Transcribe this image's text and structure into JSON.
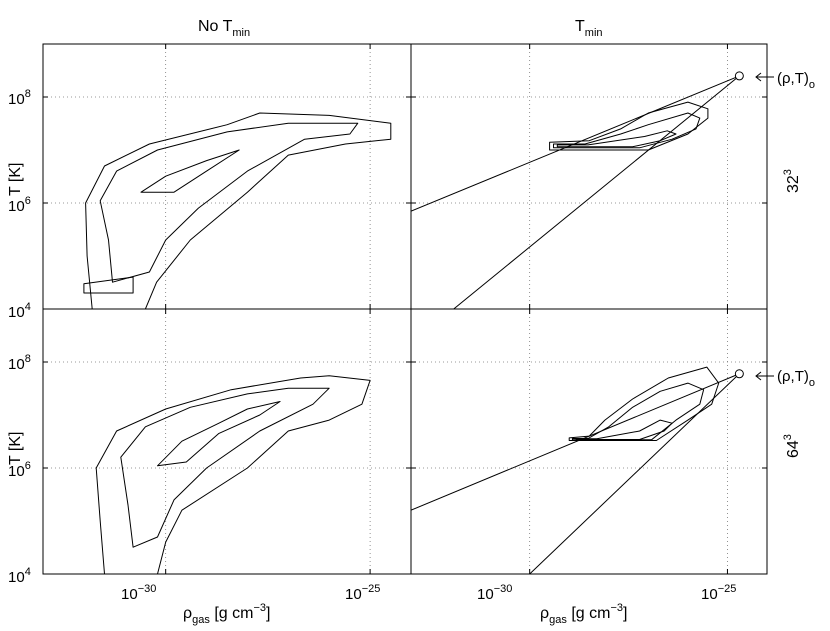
{
  "colors": {
    "line": "#000000",
    "grid": "#777777",
    "background": "#ffffff"
  },
  "columns": {
    "left": {
      "base": "No T",
      "sub": "min"
    },
    "right": {
      "base": "T",
      "sub": "min"
    }
  },
  "rows": {
    "top": {
      "base": "32",
      "sup": "3"
    },
    "bottom": {
      "base": "64",
      "sup": "3"
    }
  },
  "annotation": {
    "text": "(ρ,T)",
    "sub": "o"
  },
  "xaxis": {
    "base": "ρ",
    "sub": "gas",
    "unit_pre": "[g cm",
    "unit_sup": "−3",
    "unit_post": "]",
    "ticks": [
      {
        "base": "10",
        "exp": "−30"
      },
      {
        "base": "10",
        "exp": "−25"
      }
    ]
  },
  "yaxis": {
    "label": "T [K]",
    "ticks": [
      {
        "base": "10",
        "exp": "4"
      },
      {
        "base": "10",
        "exp": "6"
      },
      {
        "base": "10",
        "exp": "8"
      }
    ]
  },
  "chart_data": [
    {
      "type": "contour",
      "panel": "No T_min, 32^3",
      "xscale": "log",
      "yscale": "log",
      "xlim": [
        1e-33,
        1e-24
      ],
      "ylim": [
        10000.0,
        1000000000.0
      ],
      "xticks": [
        1e-30,
        1e-25
      ],
      "yticks": [
        10000.0,
        1000000.0,
        100000000.0
      ],
      "grid": true,
      "contours": [
        {
          "level": "outer",
          "points": [
            [
              1.6e-32,
              10000.0
            ],
            [
              1.2e-32,
              100000.0
            ],
            [
              1.1e-32,
              1000000.0
            ],
            [
              3.2e-32,
              5000000.0
            ],
            [
              4e-31,
              13000000.0
            ],
            [
              3.2e-29,
              30000000.0
            ],
            [
              2e-28,
              50000000.0
            ],
            [
              1e-26,
              45000000.0
            ],
            [
              3.2e-25,
              32000000.0
            ],
            [
              3.2e-25,
              16000000.0
            ],
            [
              2.5e-26,
              13000000.0
            ],
            [
              1e-27,
              8000000.0
            ],
            [
              1e-28,
              1600000.0
            ],
            [
              4e-30,
              200000.0
            ],
            [
              6e-31,
              32000.0
            ],
            [
              3.2e-31,
              10000.0
            ]
          ]
        },
        {
          "level": "middle",
          "points": [
            [
              5e-32,
              32000.0
            ],
            [
              4e-32,
              200000.0
            ],
            [
              2.5e-32,
              1100000.0
            ],
            [
              6.3e-32,
              4000000.0
            ],
            [
              6.3e-31,
              10000000.0
            ],
            [
              3.2e-29,
              22000000.0
            ],
            [
              1e-27,
              32000000.0
            ],
            [
              5e-26,
              32000000.0
            ],
            [
              3.2e-26,
              20000000.0
            ],
            [
              2.5e-27,
              16000000.0
            ],
            [
              1e-28,
              4000000.0
            ],
            [
              6.3e-30,
              800000.0
            ],
            [
              1e-30,
              200000.0
            ],
            [
              4e-31,
              50000.0
            ]
          ]
        },
        {
          "level": "inner",
          "points": [
            [
              2.5e-31,
              1600000.0
            ],
            [
              1e-30,
              3200000.0
            ],
            [
              1e-29,
              6300000.0
            ],
            [
              6.3e-29,
              10000000.0
            ],
            [
              1e-29,
              4000000.0
            ],
            [
              1.6e-30,
              1600000.0
            ]
          ]
        },
        {
          "level": "inner",
          "points": [
            [
              1e-32,
              30000.0
            ],
            [
              1.6e-31,
              40000.0
            ],
            [
              1.6e-31,
              20000.0
            ],
            [
              1e-32,
              20000.0
            ]
          ]
        }
      ]
    },
    {
      "type": "contour",
      "panel": "T_min, 32^3",
      "xscale": "log",
      "yscale": "log",
      "xlim": [
        1e-33,
        1e-24
      ],
      "ylim": [
        10000.0,
        1000000000.0
      ],
      "xticks": [
        1e-30,
        1e-25
      ],
      "yticks": [
        10000.0,
        1000000.0,
        100000000.0
      ],
      "grid": true,
      "contours": [
        {
          "level": "outer",
          "points": [
            [
              3.2e-30,
              14000000.0
            ],
            [
              3.2e-30,
              10000000.0
            ],
            [
              1e-27,
              10000000.0
            ],
            [
              1e-26,
              20000000.0
            ],
            [
              3.2e-26,
              40000000.0
            ],
            [
              3.2e-26,
              60000000.0
            ],
            [
              1e-26,
              80000000.0
            ],
            [
              1e-27,
              50000000.0
            ],
            [
              2e-28,
              25000000.0
            ],
            [
              3.2e-29,
              15000000.0
            ]
          ]
        },
        {
          "level": "middle",
          "points": [
            [
              4e-30,
              13000000.0
            ],
            [
              4e-30,
              11000000.0
            ],
            [
              6e-28,
              11000000.0
            ],
            [
              4e-27,
              16000000.0
            ],
            [
              1.6e-26,
              25000000.0
            ],
            [
              2e-26,
              40000000.0
            ],
            [
              1e-26,
              50000000.0
            ],
            [
              1e-27,
              30000000.0
            ],
            [
              2e-28,
              20000000.0
            ],
            [
              2.5e-29,
              13000000.0
            ]
          ]
        },
        {
          "level": "inner",
          "points": [
            [
              5e-30,
              12500000.0
            ],
            [
              5e-30,
              11500000.0
            ],
            [
              4e-28,
              11500000.0
            ],
            [
              2e-27,
              15000000.0
            ],
            [
              5e-27,
              20000000.0
            ],
            [
              3e-27,
              23000000.0
            ],
            [
              8e-28,
              18000000.0
            ],
            [
              3e-29,
              12500000.0
            ]
          ]
        }
      ],
      "lines": [
        {
          "points": [
            [
              1e-33,
              700000.0
            ],
            [
              2e-25,
              250000000.0
            ]
          ]
        },
        {
          "points": [
            [
              1.2e-32,
              10000.0
            ],
            [
              2e-25,
              250000000.0
            ]
          ]
        }
      ],
      "marker": {
        "point": [
          2e-25,
          250000000.0
        ],
        "label": "(ρ,T)o"
      }
    },
    {
      "type": "contour",
      "panel": "No T_min, 64^3",
      "xscale": "log",
      "yscale": "log",
      "xlim": [
        1e-33,
        1e-24
      ],
      "ylim": [
        10000.0,
        1000000000.0
      ],
      "xticks": [
        1e-30,
        1e-25
      ],
      "yticks": [
        10000.0,
        1000000.0,
        100000000.0
      ],
      "grid": true,
      "contours": [
        {
          "level": "outer",
          "points": [
            [
              3.2e-32,
              10000.0
            ],
            [
              2.5e-32,
              100000.0
            ],
            [
              2e-32,
              1000000.0
            ],
            [
              6.3e-32,
              5000000.0
            ],
            [
              1e-30,
              13000000.0
            ],
            [
              4e-29,
              30000000.0
            ],
            [
              2e-27,
              50000000.0
            ],
            [
              1e-26,
              55000000.0
            ],
            [
              1e-25,
              45000000.0
            ],
            [
              6.3e-26,
              16000000.0
            ],
            [
              1e-26,
              8000000.0
            ],
            [
              1e-27,
              5000000.0
            ],
            [
              1e-28,
              1000000.0
            ],
            [
              2.5e-30,
              160000.0
            ],
            [
              1e-30,
              40000.0
            ],
            [
              6.3e-31,
              10000.0
            ]
          ]
        },
        {
          "level": "middle",
          "points": [
            [
              1.6e-31,
              32000.0
            ],
            [
              1.2e-31,
              200000.0
            ],
            [
              8e-32,
              1600000.0
            ],
            [
              3.2e-31,
              6000000.0
            ],
            [
              4e-30,
              14000000.0
            ],
            [
              1e-28,
              25000000.0
            ],
            [
              1e-27,
              32000000.0
            ],
            [
              1e-26,
              32000000.0
            ],
            [
              4e-27,
              16000000.0
            ],
            [
              2e-28,
              5000000.0
            ],
            [
              1e-29,
              1000000.0
            ],
            [
              1.6e-30,
              250000.0
            ],
            [
              6.3e-31,
              50000.0
            ]
          ]
        },
        {
          "level": "inner",
          "points": [
            [
              6.3e-31,
              1100000.0
            ],
            [
              2.5e-30,
              3200000.0
            ],
            [
              2e-29,
              7000000.0
            ],
            [
              1e-28,
              13000000.0
            ],
            [
              6.3e-28,
              18000000.0
            ],
            [
              2e-28,
              10000000.0
            ],
            [
              2e-29,
              4500000.0
            ],
            [
              3.2e-30,
              1300000.0
            ]
          ]
        }
      ]
    },
    {
      "type": "contour",
      "panel": "T_min, 64^3",
      "xscale": "log",
      "yscale": "log",
      "xlim": [
        1e-33,
        1e-24
      ],
      "ylim": [
        10000.0,
        1000000000.0
      ],
      "xticks": [
        1e-30,
        1e-25
      ],
      "yticks": [
        10000.0,
        1000000.0,
        100000000.0
      ],
      "grid": true,
      "contours": [
        {
          "level": "outer",
          "points": [
            [
              1e-29,
              3700000.0
            ],
            [
              1e-29,
              3300000.0
            ],
            [
              1.6e-27,
              3300000.0
            ],
            [
              1e-26,
              8000000.0
            ],
            [
              4e-26,
              16000000.0
            ],
            [
              6e-26,
              40000000.0
            ],
            [
              3e-26,
              80000000.0
            ],
            [
              3.2e-27,
              50000000.0
            ],
            [
              4e-28,
              20000000.0
            ],
            [
              8e-29,
              8000000.0
            ],
            [
              3.2e-29,
              4000000.0
            ]
          ]
        },
        {
          "level": "middle",
          "points": [
            [
              1.2e-29,
              3600000.0
            ],
            [
              1.2e-29,
              3400000.0
            ],
            [
              1.2e-27,
              3400000.0
            ],
            [
              5e-27,
              8000000.0
            ],
            [
              2e-26,
              16000000.0
            ],
            [
              2.5e-26,
              30000000.0
            ],
            [
              1e-26,
              40000000.0
            ],
            [
              2e-27,
              28000000.0
            ],
            [
              4e-28,
              14000000.0
            ],
            [
              1e-28,
              6000000.0
            ],
            [
              3e-29,
              3600000.0
            ]
          ]
        },
        {
          "level": "inner",
          "points": [
            [
              1.5e-29,
              3550000.0
            ],
            [
              1.5e-29,
              3450000.0
            ],
            [
              6e-28,
              3450000.0
            ],
            [
              2.5e-27,
              5000000.0
            ],
            [
              4e-27,
              7000000.0
            ],
            [
              2e-27,
              8000000.0
            ],
            [
              6e-28,
              5000000.0
            ],
            [
              5e-29,
              3550000.0
            ]
          ]
        }
      ],
      "lines": [
        {
          "points": [
            [
              1e-33,
              160000.0
            ],
            [
              2e-25,
              60000000.0
            ]
          ]
        },
        {
          "points": [
            [
              1e-30,
              10000.0
            ],
            [
              2e-25,
              60000000.0
            ]
          ]
        }
      ],
      "marker": {
        "point": [
          2e-25,
          60000000.0
        ],
        "label": "(ρ,T)o"
      }
    }
  ]
}
